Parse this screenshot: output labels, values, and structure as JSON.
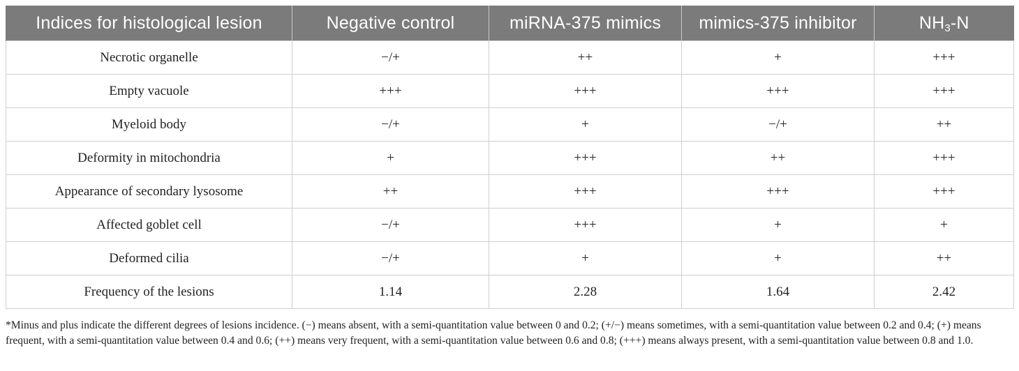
{
  "table": {
    "headers": [
      "Indices for histological lesion",
      "Negative control",
      "miRNA-375 mimics",
      "mimics-375 inhibitor",
      "NH3-N"
    ],
    "rows": [
      [
        "Necrotic organelle",
        "−/+",
        "++",
        "+",
        "+++"
      ],
      [
        "Empty vacuole",
        "+++",
        "+++",
        "+++",
        "+++"
      ],
      [
        "Myeloid body",
        "−/+",
        "+",
        "−/+",
        "++"
      ],
      [
        "Deformity in mitochondria",
        "+",
        "+++",
        "++",
        "+++"
      ],
      [
        "Appearance of secondary lysosome",
        "++",
        "+++",
        "+++",
        "+++"
      ],
      [
        "Affected goblet cell",
        "−/+",
        "+++",
        "+",
        "+"
      ],
      [
        "Deformed cilia",
        "−/+",
        "+",
        "+",
        "++"
      ],
      [
        "Frequency of the lesions",
        "1.14",
        "2.28",
        "1.64",
        "2.42"
      ]
    ]
  },
  "footnote": "*Minus and plus indicate the different degrees of lesions incidence. (−) means absent, with a semi-quantitation value between 0 and 0.2; (+/−) means sometimes, with a semi-quantitation value between 0.2 and 0.4; (+) means frequent, with a semi-quantitation value between 0.4 and 0.6; (++) means very frequent, with a semi-quantitation value between 0.6 and 0.8; (+++) means always present, with a semi-quantitation value between 0.8 and 1.0.",
  "colors": {
    "header_background": "#7b7b7b",
    "header_text": "#ffffff",
    "grid_line": "#cfcfcf"
  }
}
